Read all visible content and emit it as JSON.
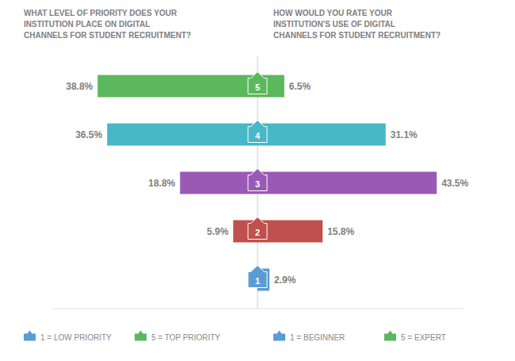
{
  "chart_data": {
    "type": "bar",
    "orientation": "horizontal",
    "categories": [
      "5",
      "4",
      "3",
      "2",
      "1"
    ],
    "colors": [
      "#5cb85c",
      "#46b8c8",
      "#9b59b6",
      "#c0504d",
      "#5b9bd5"
    ],
    "series": [
      {
        "name": "WHAT LEVEL OF PRIORITY DOES YOUR\nINSTITUTION PLACE ON DIGITAL\nCHANNELS FOR STUDENT RECRUITMENT?",
        "values": [
          38.8,
          36.5,
          18.8,
          5.9,
          0.0
        ],
        "value_labels": [
          "38.8%",
          "36.5%",
          "18.8%",
          "5.9%",
          null
        ]
      },
      {
        "name": "HOW WOULD YOU RATE YOUR\nINSTITUTION'S USE OF DIGITAL\nCHANNELS FOR STUDENT RECRUITMENT?",
        "values": [
          6.5,
          31.1,
          43.5,
          15.8,
          2.9
        ],
        "value_labels": [
          "6.5%",
          "31.1%",
          "43.5%",
          "15.8%",
          "2.9%"
        ]
      }
    ],
    "xlim": [
      0,
      50
    ],
    "data_labels": true,
    "tick_labels": false,
    "grid": false,
    "annotations": [
      {
        "text": "1 = LOW PRIORITY",
        "color": "#5b9bd5"
      },
      {
        "text": "5 = TOP PRIORITY",
        "color": "#5cb85c"
      },
      {
        "text": "1 = BEGINNER",
        "color": "#5b9bd5"
      },
      {
        "text": "5 = EXPERT",
        "color": "#5cb85c"
      }
    ]
  }
}
